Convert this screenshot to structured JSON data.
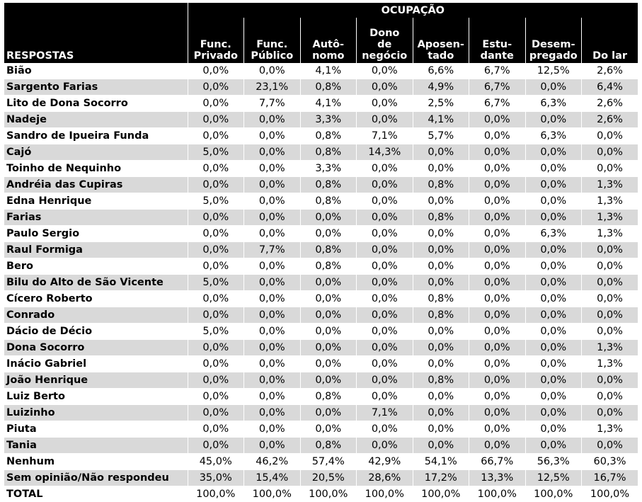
{
  "table": {
    "title": "OCUPAÇÃO",
    "respostas_label": "RESPOSTAS",
    "columns": [
      [
        "Func.",
        "Privado"
      ],
      [
        "Func.",
        "Público"
      ],
      [
        "Autô-",
        "nomo"
      ],
      [
        "Dono",
        "de",
        "negócio"
      ],
      [
        "Aposen-",
        "tado"
      ],
      [
        "Estu-",
        "dante"
      ],
      [
        "Desem-",
        "pregado"
      ],
      [
        "Do lar"
      ]
    ],
    "rows": [
      {
        "name": "Bião",
        "values": [
          "0,0%",
          "0,0%",
          "4,1%",
          "0,0%",
          "6,6%",
          "6,7%",
          "12,5%",
          "2,6%"
        ]
      },
      {
        "name": "Sargento Farias",
        "values": [
          "0,0%",
          "23,1%",
          "0,8%",
          "0,0%",
          "4,9%",
          "6,7%",
          "0,0%",
          "6,4%"
        ]
      },
      {
        "name": "Lito de Dona Socorro",
        "values": [
          "0,0%",
          "7,7%",
          "4,1%",
          "0,0%",
          "2,5%",
          "6,7%",
          "6,3%",
          "2,6%"
        ]
      },
      {
        "name": "Nadeje",
        "values": [
          "0,0%",
          "0,0%",
          "3,3%",
          "0,0%",
          "4,1%",
          "0,0%",
          "0,0%",
          "2,6%"
        ]
      },
      {
        "name": "Sandro de Ipueira Funda",
        "values": [
          "0,0%",
          "0,0%",
          "0,8%",
          "7,1%",
          "5,7%",
          "0,0%",
          "6,3%",
          "0,0%"
        ]
      },
      {
        "name": "Cajó",
        "values": [
          "5,0%",
          "0,0%",
          "0,8%",
          "14,3%",
          "0,0%",
          "0,0%",
          "0,0%",
          "0,0%"
        ]
      },
      {
        "name": "Toinho de Nequinho",
        "values": [
          "0,0%",
          "0,0%",
          "3,3%",
          "0,0%",
          "0,0%",
          "0,0%",
          "0,0%",
          "0,0%"
        ]
      },
      {
        "name": "Andréia das Cupiras",
        "values": [
          "0,0%",
          "0,0%",
          "0,8%",
          "0,0%",
          "0,8%",
          "0,0%",
          "0,0%",
          "1,3%"
        ]
      },
      {
        "name": "Edna Henrique",
        "values": [
          "5,0%",
          "0,0%",
          "0,8%",
          "0,0%",
          "0,0%",
          "0,0%",
          "0,0%",
          "1,3%"
        ]
      },
      {
        "name": "Farias",
        "values": [
          "0,0%",
          "0,0%",
          "0,0%",
          "0,0%",
          "0,8%",
          "0,0%",
          "0,0%",
          "1,3%"
        ]
      },
      {
        "name": "Paulo Sergio",
        "values": [
          "0,0%",
          "0,0%",
          "0,0%",
          "0,0%",
          "0,0%",
          "0,0%",
          "6,3%",
          "1,3%"
        ]
      },
      {
        "name": "Raul Formiga",
        "values": [
          "0,0%",
          "7,7%",
          "0,8%",
          "0,0%",
          "0,0%",
          "0,0%",
          "0,0%",
          "0,0%"
        ]
      },
      {
        "name": "Bero",
        "values": [
          "0,0%",
          "0,0%",
          "0,8%",
          "0,0%",
          "0,0%",
          "0,0%",
          "0,0%",
          "0,0%"
        ]
      },
      {
        "name": "Bilu do Alto de São Vicente",
        "values": [
          "5,0%",
          "0,0%",
          "0,0%",
          "0,0%",
          "0,0%",
          "0,0%",
          "0,0%",
          "0,0%"
        ]
      },
      {
        "name": "Cícero Roberto",
        "values": [
          "0,0%",
          "0,0%",
          "0,0%",
          "0,0%",
          "0,8%",
          "0,0%",
          "0,0%",
          "0,0%"
        ]
      },
      {
        "name": "Conrado",
        "values": [
          "0,0%",
          "0,0%",
          "0,0%",
          "0,0%",
          "0,8%",
          "0,0%",
          "0,0%",
          "0,0%"
        ]
      },
      {
        "name": "Dácio de Décio",
        "values": [
          "5,0%",
          "0,0%",
          "0,0%",
          "0,0%",
          "0,0%",
          "0,0%",
          "0,0%",
          "0,0%"
        ]
      },
      {
        "name": "Dona Socorro",
        "values": [
          "0,0%",
          "0,0%",
          "0,0%",
          "0,0%",
          "0,0%",
          "0,0%",
          "0,0%",
          "1,3%"
        ]
      },
      {
        "name": "Inácio Gabriel",
        "values": [
          "0,0%",
          "0,0%",
          "0,0%",
          "0,0%",
          "0,0%",
          "0,0%",
          "0,0%",
          "1,3%"
        ]
      },
      {
        "name": "João Henrique",
        "values": [
          "0,0%",
          "0,0%",
          "0,0%",
          "0,0%",
          "0,8%",
          "0,0%",
          "0,0%",
          "0,0%"
        ]
      },
      {
        "name": "Luiz Berto",
        "values": [
          "0,0%",
          "0,0%",
          "0,8%",
          "0,0%",
          "0,0%",
          "0,0%",
          "0,0%",
          "0,0%"
        ]
      },
      {
        "name": "Luizinho",
        "values": [
          "0,0%",
          "0,0%",
          "0,0%",
          "7,1%",
          "0,0%",
          "0,0%",
          "0,0%",
          "0,0%"
        ]
      },
      {
        "name": "Piuta",
        "values": [
          "0,0%",
          "0,0%",
          "0,0%",
          "0,0%",
          "0,0%",
          "0,0%",
          "0,0%",
          "1,3%"
        ]
      },
      {
        "name": "Tania",
        "values": [
          "0,0%",
          "0,0%",
          "0,8%",
          "0,0%",
          "0,0%",
          "0,0%",
          "0,0%",
          "0,0%"
        ]
      },
      {
        "name": "Nenhum",
        "values": [
          "45,0%",
          "46,2%",
          "57,4%",
          "42,9%",
          "54,1%",
          "66,7%",
          "56,3%",
          "60,3%"
        ]
      },
      {
        "name": "Sem opinião/Não respondeu",
        "values": [
          "35,0%",
          "15,4%",
          "20,5%",
          "28,6%",
          "17,2%",
          "13,3%",
          "12,5%",
          "16,7%"
        ]
      },
      {
        "name": "TOTAL",
        "values": [
          "100,0%",
          "100,0%",
          "100,0%",
          "100,0%",
          "100,0%",
          "100,0%",
          "100,0%",
          "100,0%"
        ]
      }
    ]
  }
}
